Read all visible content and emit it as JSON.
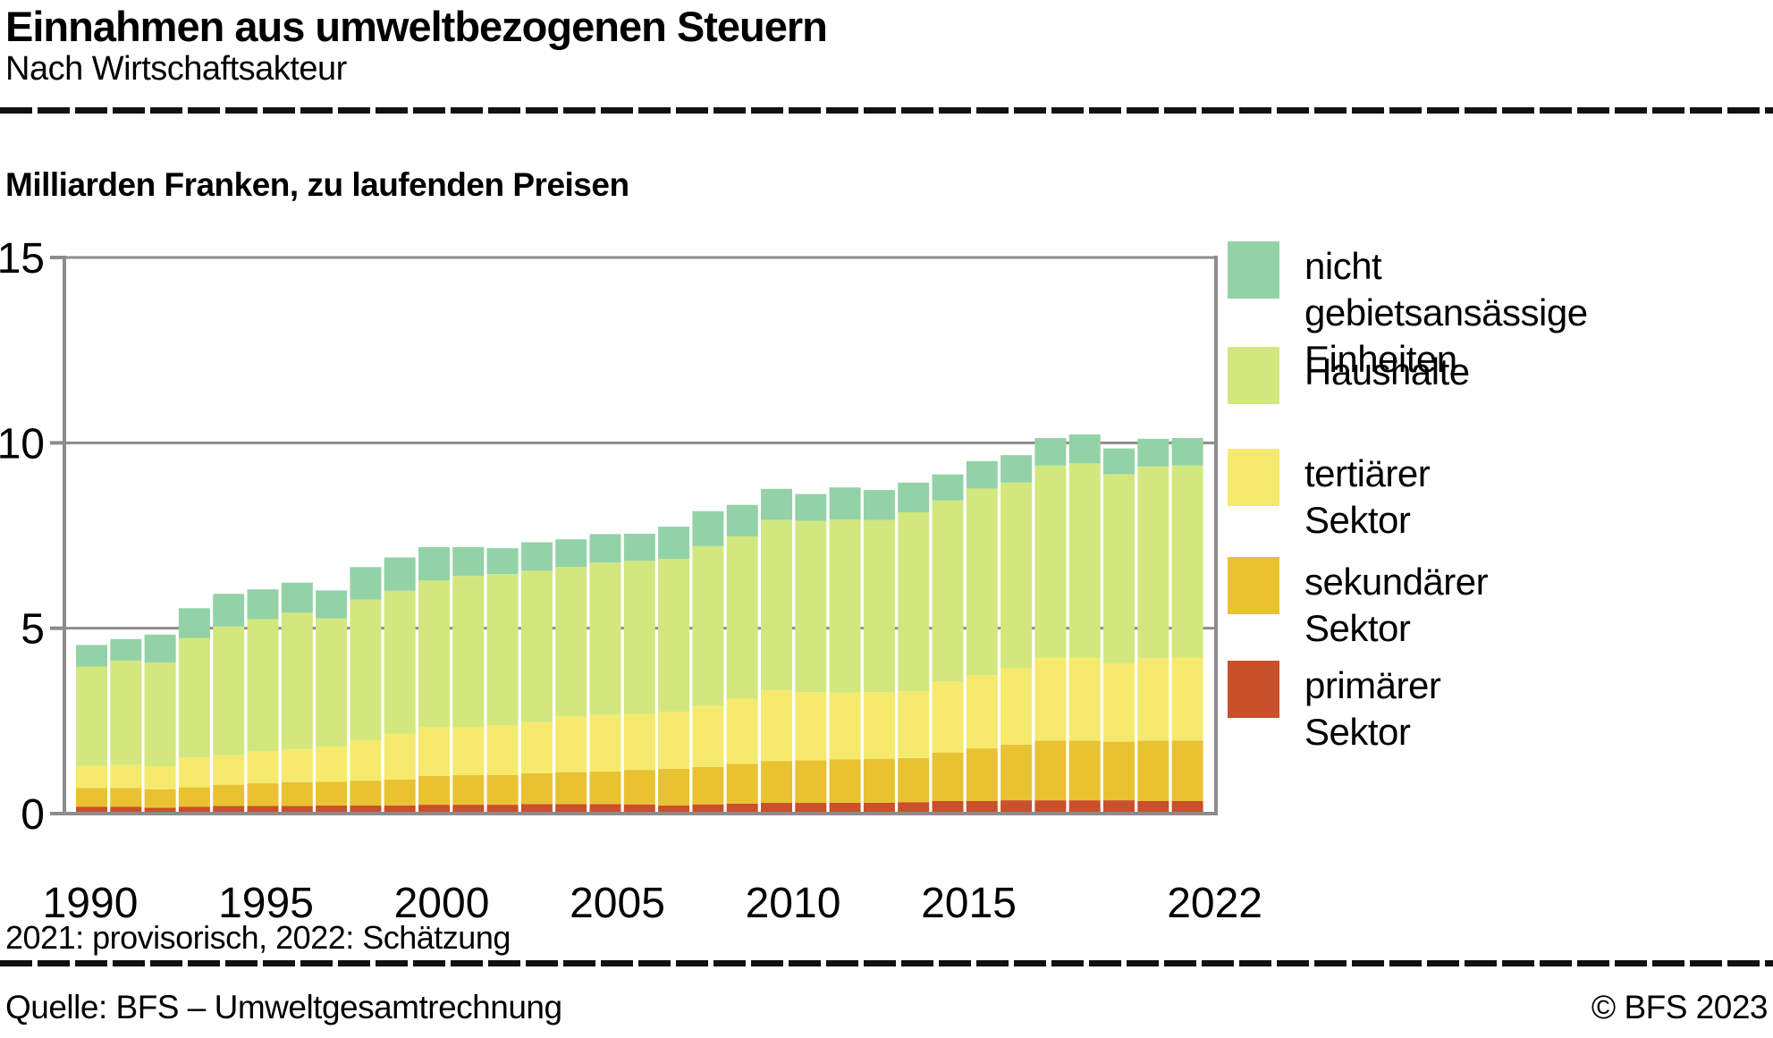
{
  "header": {
    "title": "Einnahmen aus umweltbezogenen Steuern",
    "subtitle": "Nach Wirtschaftsakteur"
  },
  "chart": {
    "unit_label": "Milliarden Franken, zu laufenden Preisen"
  },
  "chart_data": {
    "type": "bar",
    "stacked": true,
    "title": "Einnahmen aus umweltbezogenen Steuern",
    "subtitle": "Nach Wirtschaftsakteur",
    "ylabel": "Milliarden Franken, zu laufenden Preisen",
    "xlabel": "",
    "ylim": [
      0,
      15
    ],
    "yticks": [
      0,
      5,
      10,
      15
    ],
    "grid": "horizontal",
    "legend_position": "right",
    "x_tick_years": [
      1990,
      1995,
      2000,
      2005,
      2010,
      2015,
      2022
    ],
    "x_tick_labels": [
      "1990",
      "1995",
      "2000",
      "2005",
      "2010",
      "2015",
      "2022"
    ],
    "categories": [
      1990,
      1991,
      1992,
      1993,
      1994,
      1995,
      1996,
      1997,
      1998,
      1999,
      2000,
      2001,
      2002,
      2003,
      2004,
      2005,
      2006,
      2007,
      2008,
      2009,
      2010,
      2011,
      2012,
      2013,
      2014,
      2015,
      2016,
      2017,
      2018,
      2019,
      2020,
      2021,
      2022
    ],
    "series": [
      {
        "name": "primärer Sektor",
        "color": "#c8502a",
        "values": [
          0.14,
          0.14,
          0.11,
          0.14,
          0.16,
          0.16,
          0.16,
          0.17,
          0.17,
          0.17,
          0.19,
          0.19,
          0.19,
          0.21,
          0.21,
          0.21,
          0.2,
          0.17,
          0.2,
          0.22,
          0.24,
          0.24,
          0.24,
          0.24,
          0.26,
          0.29,
          0.29,
          0.31,
          0.31,
          0.31,
          0.31,
          0.29,
          0.29
        ]
      },
      {
        "name": "sekundärer Sektor",
        "color": "#e9c232",
        "values": [
          0.5,
          0.5,
          0.5,
          0.52,
          0.57,
          0.61,
          0.64,
          0.64,
          0.67,
          0.7,
          0.78,
          0.8,
          0.8,
          0.83,
          0.86,
          0.88,
          0.93,
          0.99,
          1.01,
          1.07,
          1.13,
          1.15,
          1.17,
          1.19,
          1.19,
          1.31,
          1.42,
          1.5,
          1.61,
          1.61,
          1.58,
          1.63,
          1.63
        ]
      },
      {
        "name": "tertiärer Sektor",
        "color": "#f5ea6e",
        "values": [
          0.6,
          0.62,
          0.62,
          0.8,
          0.8,
          0.86,
          0.89,
          0.94,
          1.09,
          1.24,
          1.32,
          1.3,
          1.34,
          1.37,
          1.51,
          1.52,
          1.51,
          1.54,
          1.65,
          1.76,
          1.91,
          1.84,
          1.8,
          1.8,
          1.8,
          1.92,
          1.98,
          2.06,
          2.24,
          2.24,
          2.11,
          2.22,
          2.24
        ]
      },
      {
        "name": "Haushalte",
        "color": "#d2e87e",
        "values": [
          2.68,
          2.82,
          2.8,
          3.23,
          3.47,
          3.57,
          3.68,
          3.47,
          3.79,
          3.85,
          3.95,
          4.07,
          4.08,
          4.09,
          4.02,
          4.11,
          4.13,
          4.12,
          4.31,
          4.38,
          4.59,
          4.62,
          4.68,
          4.64,
          4.83,
          4.88,
          5.03,
          5.01,
          5.18,
          5.24,
          5.1,
          5.18,
          5.18
        ]
      },
      {
        "name": "nicht gebietsansässige Einheiten",
        "color": "#93d2a7",
        "values": [
          0.58,
          0.58,
          0.75,
          0.8,
          0.88,
          0.8,
          0.81,
          0.75,
          0.88,
          0.9,
          0.9,
          0.78,
          0.7,
          0.77,
          0.75,
          0.77,
          0.73,
          0.87,
          0.94,
          0.85,
          0.84,
          0.72,
          0.86,
          0.81,
          0.8,
          0.7,
          0.74,
          0.74,
          0.74,
          0.78,
          0.7,
          0.74,
          0.74
        ]
      }
    ],
    "legend": [
      {
        "label": "nicht gebietsansässige Einheiten",
        "color": "#93d2a7"
      },
      {
        "label": "Haushalte",
        "color": "#d2e87e"
      },
      {
        "label": "tertiärer Sektor",
        "color": "#f5ea6e"
      },
      {
        "label": "sekundärer Sektor",
        "color": "#e9c232"
      },
      {
        "label": "primärer Sektor",
        "color": "#c8502a"
      }
    ]
  },
  "footnote": "2021: provisorisch, 2022: Schätzung",
  "footer": {
    "source": "Quelle: BFS – Umweltgesamtrechnung",
    "copyright": "© BFS 2023"
  },
  "colors": {
    "axis_gray": "#8c8c8c",
    "rule_black": "#111111"
  }
}
